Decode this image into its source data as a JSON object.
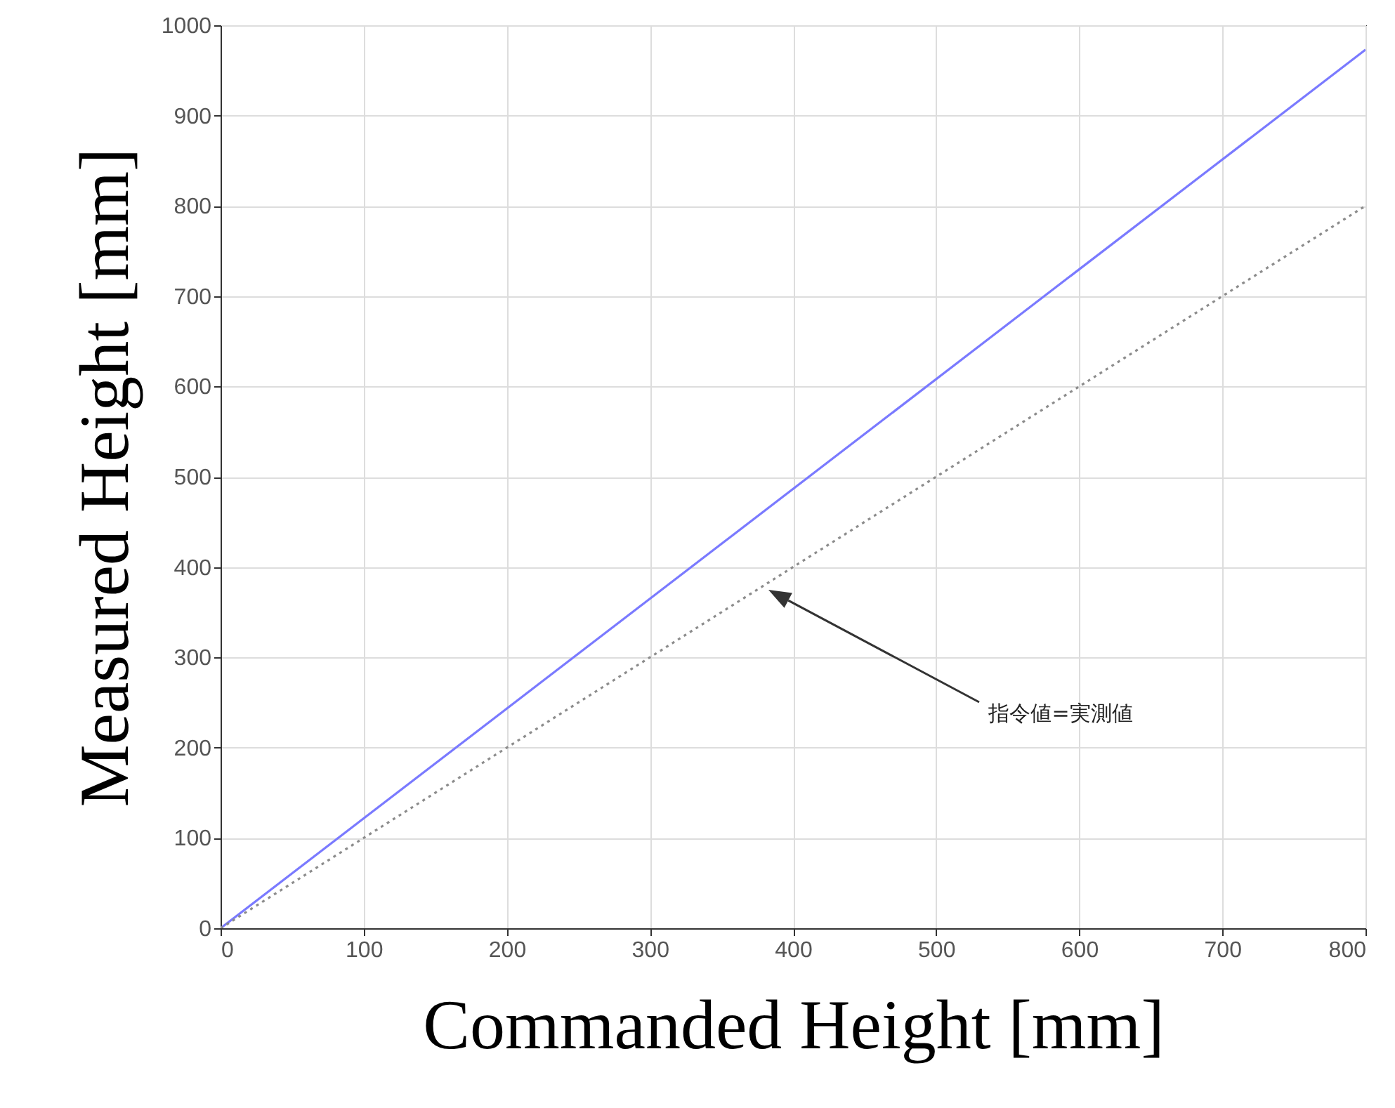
{
  "chart_data": {
    "type": "line",
    "xlabel": "Commanded Height [mm]",
    "ylabel": "Measured Height [mm]",
    "x": [
      0,
      800
    ],
    "series": [
      {
        "color": "#7a7aff",
        "values": [
          0,
          973
        ],
        "line_style": "solid"
      },
      {
        "color": "#8c8c8c",
        "values": [
          0,
          800
        ],
        "line_style": "dotted"
      }
    ],
    "xlim": [
      0,
      800
    ],
    "xticks": [
      0,
      100,
      200,
      300,
      400,
      500,
      600,
      700,
      800
    ],
    "ylim": [
      0,
      1000
    ],
    "yticks": [
      0,
      100,
      200,
      300,
      400,
      500,
      600,
      700,
      800,
      900,
      1000
    ],
    "grid": true,
    "marker": "none",
    "annotations": [
      "指令値=実測値"
    ]
  }
}
